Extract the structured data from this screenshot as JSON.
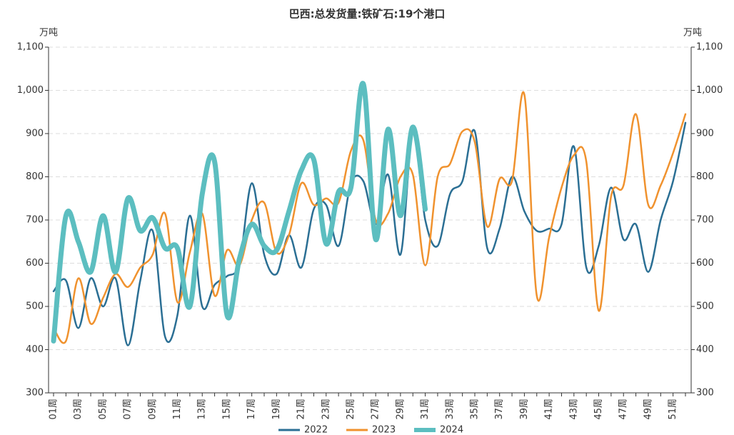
{
  "chart_data": {
    "type": "line",
    "title": "巴西:总发货量:铁矿石:19个港口",
    "y_unit": "万吨",
    "y2_unit": "万吨",
    "categories": [
      "01周",
      null,
      "03周",
      null,
      "05周",
      null,
      "07周",
      null,
      "09周",
      null,
      "11周",
      null,
      "13周",
      null,
      "15周",
      null,
      "17周",
      null,
      "19周",
      null,
      "21周",
      null,
      "23周",
      null,
      "25周",
      null,
      "27周",
      null,
      "29周",
      null,
      "31周",
      null,
      "33周",
      null,
      "35周",
      null,
      "37周",
      null,
      "39周",
      null,
      "41周",
      null,
      "43周",
      null,
      "45周",
      null,
      "47周",
      null,
      "49周",
      null,
      "51周",
      null
    ],
    "series": [
      {
        "name": "2022",
        "color": "#2b6f94",
        "width": 2.5,
        "values": [
          535,
          560,
          450,
          565,
          500,
          565,
          410,
          560,
          675,
          430,
          480,
          710,
          500,
          550,
          570,
          600,
          785,
          620,
          575,
          665,
          590,
          725,
          735,
          640,
          785,
          790,
          690,
          805,
          620,
          900,
          700,
          640,
          760,
          790,
          905,
          635,
          680,
          800,
          720,
          675,
          680,
          690,
          870,
          590,
          640,
          775,
          655,
          690,
          580,
          700,
          790,
          925
        ]
      },
      {
        "name": "2023",
        "color": "#f0922e",
        "width": 2.5,
        "values": [
          450,
          420,
          565,
          460,
          520,
          575,
          545,
          590,
          620,
          715,
          510,
          625,
          715,
          525,
          630,
          595,
          700,
          740,
          625,
          665,
          785,
          735,
          750,
          740,
          860,
          885,
          700,
          715,
          800,
          805,
          595,
          800,
          830,
          905,
          880,
          685,
          795,
          790,
          990,
          525,
          660,
          775,
          850,
          835,
          490,
          755,
          780,
          945,
          735,
          780,
          855,
          945
        ]
      },
      {
        "name": "2024",
        "color": "#5cbec0",
        "width": 7,
        "values": [
          420,
          710,
          650,
          580,
          710,
          580,
          750,
          675,
          705,
          635,
          635,
          500,
          760,
          835,
          480,
          610,
          690,
          640,
          630,
          720,
          815,
          840,
          645,
          765,
          775,
          1015,
          655,
          910,
          710,
          915,
          725,
          null,
          null,
          null,
          null,
          null,
          null,
          null,
          null,
          null,
          null,
          null,
          null,
          null,
          null,
          null,
          null,
          null,
          null,
          null,
          null,
          null
        ]
      }
    ],
    "ylim": [
      300,
      1100
    ],
    "yticks": [
      300,
      400,
      500,
      600,
      700,
      800,
      900,
      {
        "value": 1000,
        "label": "1,000"
      },
      {
        "value": 1100,
        "label": "1,100"
      }
    ],
    "y2lim": [
      300,
      1100
    ],
    "y2ticks": [
      300,
      400,
      500,
      600,
      700,
      800,
      900,
      {
        "value": 1000,
        "label": "1,000"
      },
      {
        "value": 1100,
        "label": "1,100"
      }
    ],
    "grid": true,
    "legend": "bottom"
  }
}
